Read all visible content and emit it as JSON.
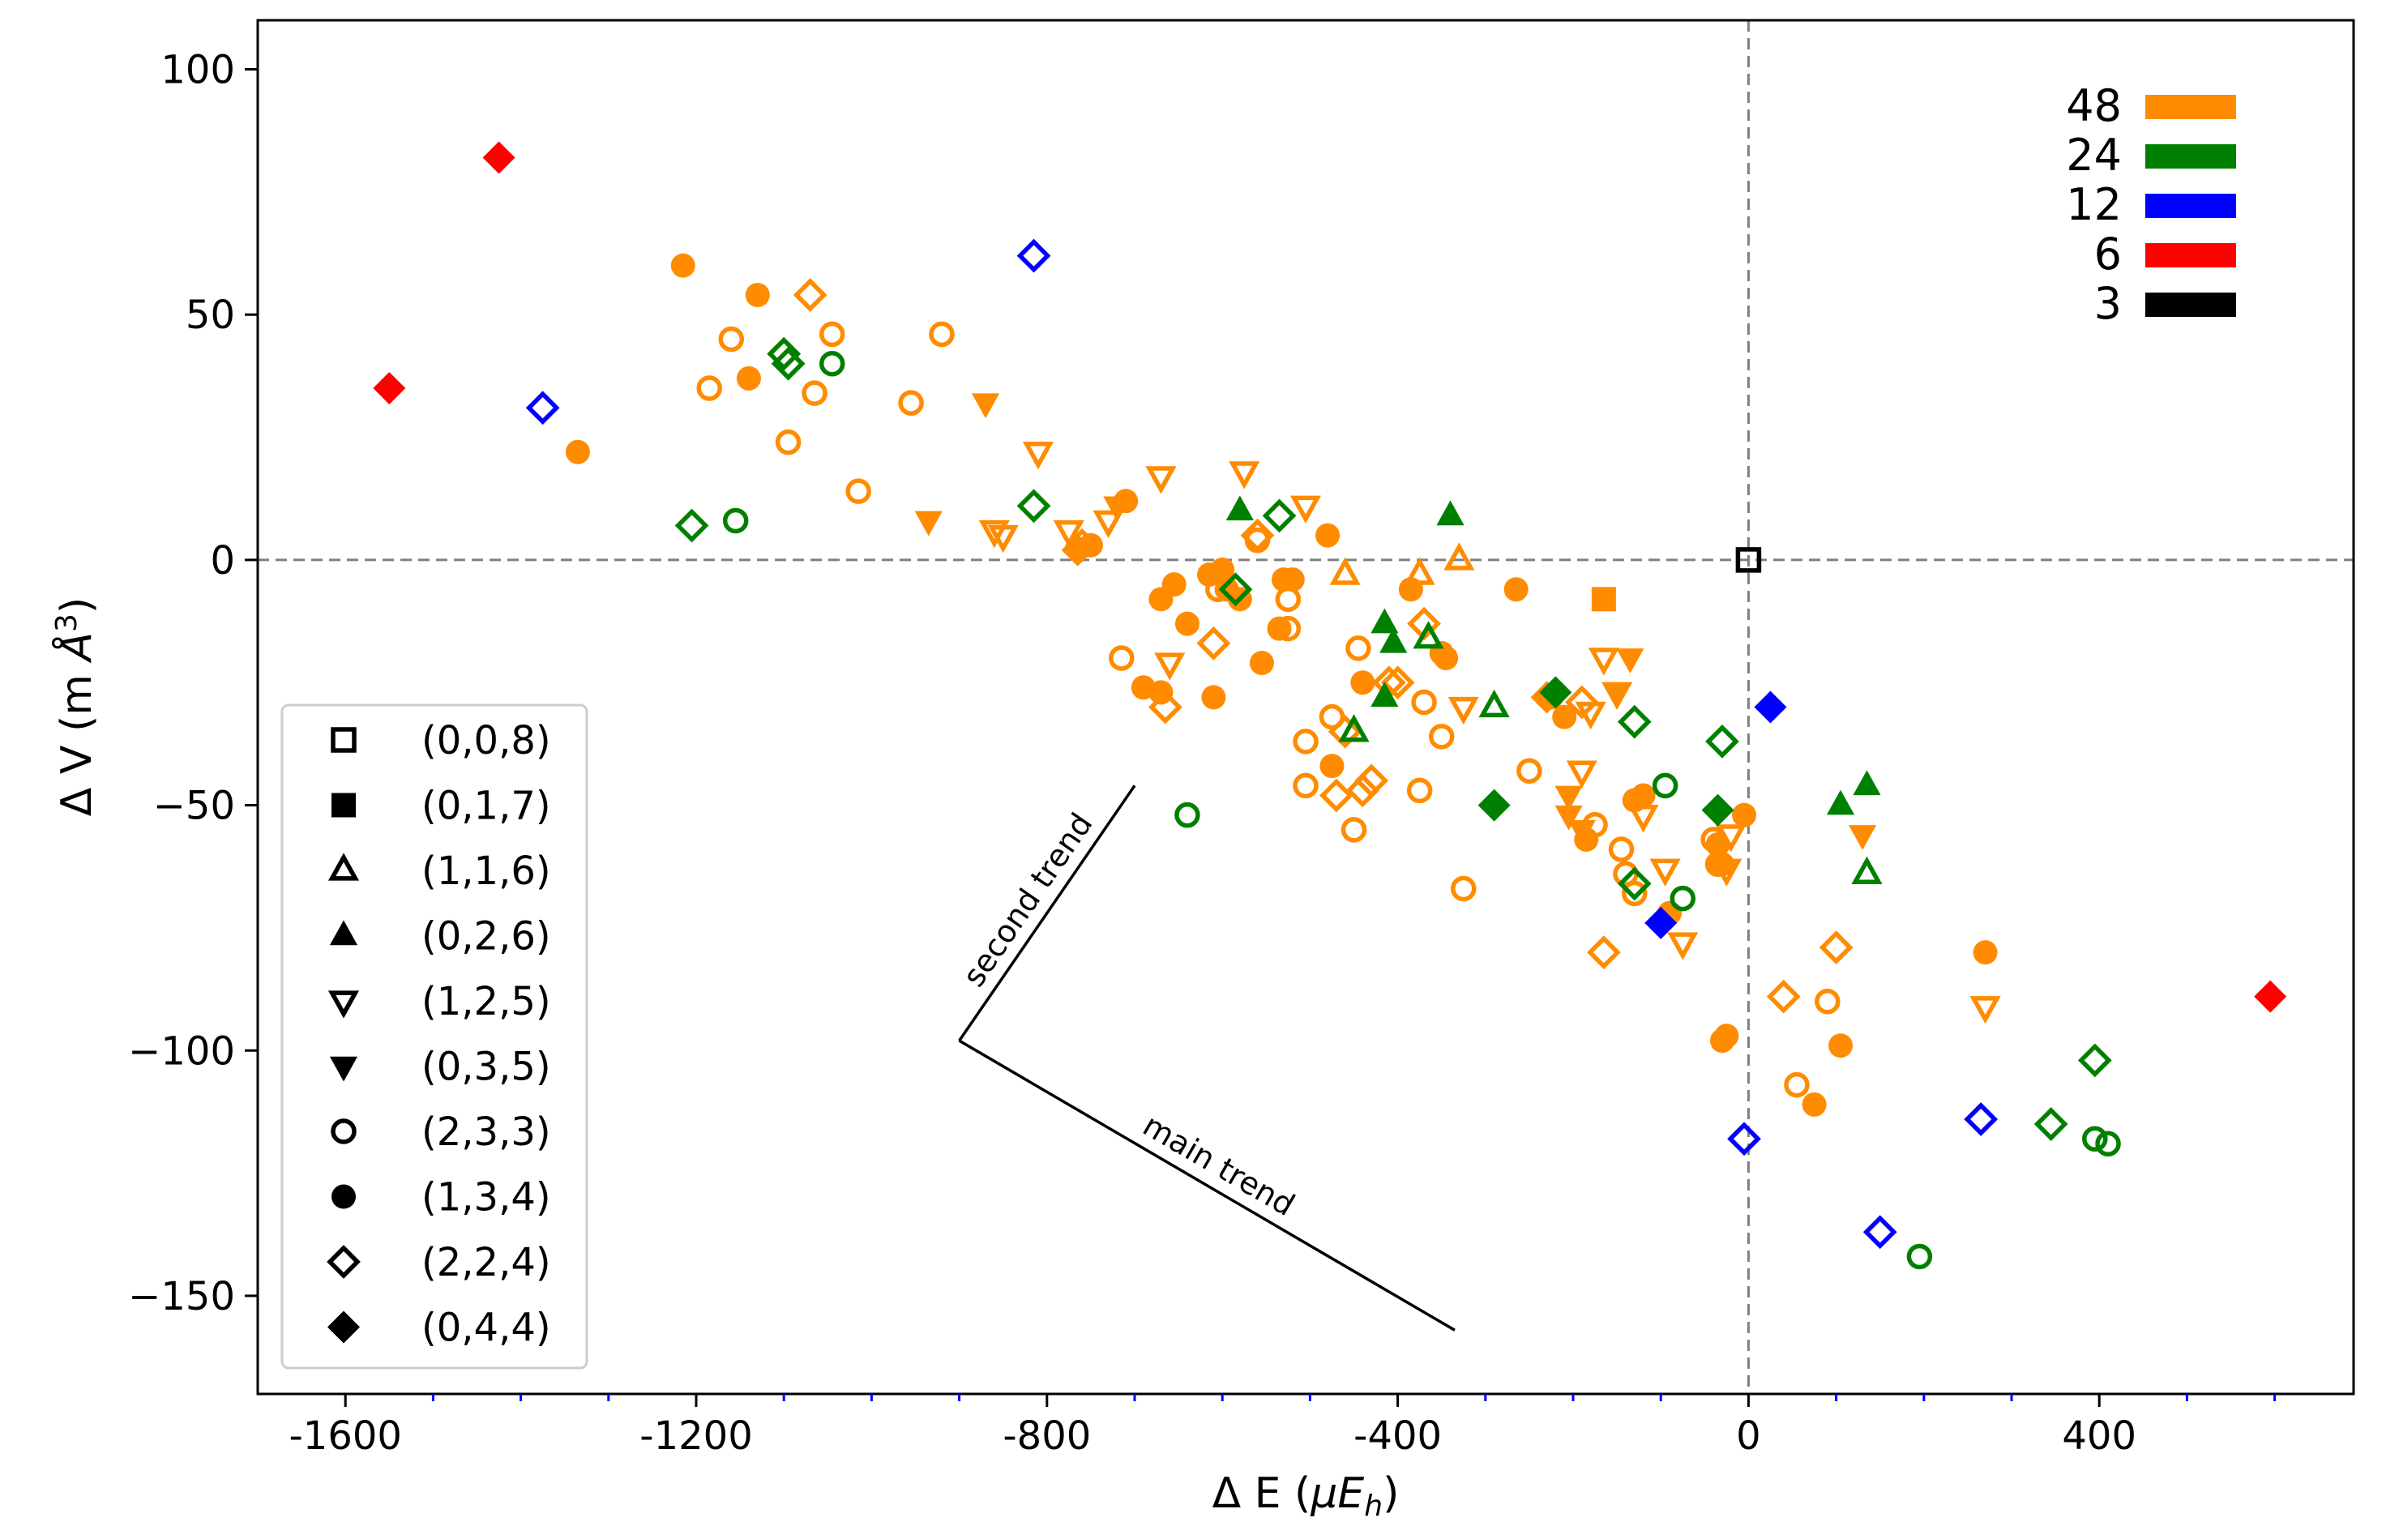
{
  "chart_data": {
    "type": "scatter",
    "title": "",
    "xlabel": "Δ E (μE_h)",
    "ylabel": "Δ V (m Å³)",
    "xlim": [
      -1700,
      690
    ],
    "ylim": [
      -170,
      110
    ],
    "xticks": [
      -1600,
      -1200,
      -800,
      -400,
      0,
      400
    ],
    "xtick_labels": [
      "-1600",
      "-1200",
      "-800",
      "-400",
      "0",
      "400"
    ],
    "yticks": [
      100,
      50,
      0,
      -50,
      -100,
      -150
    ],
    "ytick_labels": [
      "100",
      "50",
      "0",
      "−50",
      "−100",
      "−150"
    ],
    "x_minor_ticks": [
      -1500,
      -1400,
      -1300,
      -1100,
      -1000,
      -900,
      -700,
      -600,
      -500,
      -300,
      -200,
      -100,
      100,
      200,
      300,
      500,
      600
    ],
    "reference_lines": {
      "x": 0,
      "y": 0,
      "style": "dashed"
    },
    "grid": false,
    "color_legend": {
      "placement": "top-right",
      "entries": [
        {
          "label": "48",
          "color": "#ff8c00"
        },
        {
          "label": "24",
          "color": "#008000"
        },
        {
          "label": "12",
          "color": "#0000ff"
        },
        {
          "label": "6",
          "color": "#ff0000"
        },
        {
          "label": "3",
          "color": "#000000"
        }
      ]
    },
    "marker_legend": {
      "placement": "bottom-left",
      "entries": [
        {
          "label": "(0,0,8)",
          "marker": "square",
          "filled": false
        },
        {
          "label": "(0,1,7)",
          "marker": "square",
          "filled": true
        },
        {
          "label": "(1,1,6)",
          "marker": "triangle-up",
          "filled": false
        },
        {
          "label": "(0,2,6)",
          "marker": "triangle-up",
          "filled": true
        },
        {
          "label": "(1,2,5)",
          "marker": "triangle-down",
          "filled": false
        },
        {
          "label": "(0,3,5)",
          "marker": "triangle-down",
          "filled": true
        },
        {
          "label": "(2,3,3)",
          "marker": "circle",
          "filled": false
        },
        {
          "label": "(1,3,4)",
          "marker": "circle",
          "filled": true
        },
        {
          "label": "(2,2,4)",
          "marker": "diamond",
          "filled": false
        },
        {
          "label": "(0,4,4)",
          "marker": "diamond",
          "filled": true
        }
      ]
    },
    "annotations": [
      {
        "text": "second trend",
        "from": [
          -900,
          -98
        ],
        "to": [
          -700,
          -46
        ]
      },
      {
        "text": "main trend",
        "from": [
          -900,
          -98
        ],
        "to": [
          -335,
          -157
        ]
      }
    ],
    "series": [
      {
        "group": "48",
        "color": "#ff8c00",
        "marker": "circle",
        "filled": true,
        "points": [
          [
            -1215,
            60
          ],
          [
            -1130,
            54
          ],
          [
            -1140,
            37
          ],
          [
            -1335,
            22
          ],
          [
            -750,
            3
          ],
          [
            -710,
            12
          ],
          [
            -670,
            -8
          ],
          [
            -655,
            -5
          ],
          [
            -640,
            -13
          ],
          [
            -615,
            -3
          ],
          [
            -600,
            -2
          ],
          [
            -595,
            -6
          ],
          [
            -580,
            -8
          ],
          [
            -535,
            -14
          ],
          [
            -530,
            -4
          ],
          [
            -520,
            -4
          ],
          [
            -555,
            -21
          ],
          [
            -480,
            5
          ],
          [
            -475,
            -42
          ],
          [
            -440,
            -25
          ],
          [
            -385,
            -6
          ],
          [
            -350,
            -19
          ],
          [
            -345,
            -20
          ],
          [
            -265,
            -6
          ],
          [
            -225,
            -28
          ],
          [
            -210,
            -32
          ],
          [
            -185,
            -57
          ],
          [
            -130,
            -49
          ],
          [
            -120,
            -48
          ],
          [
            -90,
            -72
          ],
          [
            -35,
            -58
          ],
          [
            -35,
            -62
          ],
          [
            -30,
            -62
          ],
          [
            -30,
            -98
          ],
          [
            -25,
            -97
          ],
          [
            -5,
            -52
          ],
          [
            75,
            -111
          ],
          [
            105,
            -99
          ],
          [
            270,
            -80
          ],
          [
            -690,
            -26
          ],
          [
            -670,
            -27
          ],
          [
            -610,
            -28
          ]
        ]
      },
      {
        "group": "48",
        "color": "#ff8c00",
        "marker": "circle",
        "filled": false,
        "points": [
          [
            -1160,
            45
          ],
          [
            -1185,
            35
          ],
          [
            -1095,
            24
          ],
          [
            -1065,
            34
          ],
          [
            -1045,
            46
          ],
          [
            -955,
            32
          ],
          [
            -920,
            46
          ],
          [
            -1015,
            14
          ],
          [
            -715,
            -20
          ],
          [
            -605,
            -6
          ],
          [
            -560,
            4
          ],
          [
            -525,
            -8
          ],
          [
            -525,
            -14
          ],
          [
            -505,
            -37
          ],
          [
            -505,
            -46
          ],
          [
            -475,
            -32
          ],
          [
            -450,
            -55
          ],
          [
            -445,
            -18
          ],
          [
            -370,
            -29
          ],
          [
            -375,
            -47
          ],
          [
            -350,
            -36
          ],
          [
            -325,
            -67
          ],
          [
            -250,
            -43
          ],
          [
            -175,
            -54
          ],
          [
            -145,
            -59
          ],
          [
            -140,
            -64
          ],
          [
            -130,
            -68
          ],
          [
            -40,
            -57
          ],
          [
            -35,
            -62
          ],
          [
            90,
            -90
          ],
          [
            55,
            -107
          ]
        ]
      },
      {
        "group": "48",
        "color": "#ff8c00",
        "marker": "diamond",
        "filled": false,
        "points": [
          [
            -1070,
            54
          ],
          [
            -1100,
            42
          ],
          [
            -760,
            3
          ],
          [
            -560,
            5
          ],
          [
            -610,
            -17
          ],
          [
            -665,
            -30
          ],
          [
            -470,
            -48
          ],
          [
            -440,
            -47
          ],
          [
            -430,
            -45
          ],
          [
            -410,
            -25
          ],
          [
            -400,
            -25
          ],
          [
            -370,
            -13
          ],
          [
            -190,
            -29
          ],
          [
            -165,
            -80
          ],
          [
            40,
            -89
          ],
          [
            100,
            -79
          ],
          [
            -460,
            -35
          ]
        ]
      },
      {
        "group": "48",
        "color": "#ff8c00",
        "marker": "diamond",
        "filled": true,
        "points": [
          [
            -765,
            2
          ],
          [
            -230,
            -28
          ]
        ]
      },
      {
        "group": "48",
        "color": "#ff8c00",
        "marker": "triangle-down",
        "filled": true,
        "points": [
          [
            -870,
            32
          ],
          [
            -935,
            8
          ],
          [
            -720,
            11
          ],
          [
            -205,
            -48
          ],
          [
            -205,
            -52
          ],
          [
            -190,
            -55
          ],
          [
            -150,
            -27
          ],
          [
            -135,
            -20
          ],
          [
            130,
            -56
          ]
        ]
      },
      {
        "group": "48",
        "color": "#ff8c00",
        "marker": "triangle-down",
        "filled": false,
        "points": [
          [
            -810,
            22
          ],
          [
            -775,
            6
          ],
          [
            -730,
            8
          ],
          [
            -860,
            6
          ],
          [
            -850,
            5
          ],
          [
            -670,
            17
          ],
          [
            -660,
            -21
          ],
          [
            -575,
            18
          ],
          [
            -505,
            11
          ],
          [
            -325,
            -30
          ],
          [
            -190,
            -43
          ],
          [
            -180,
            -31
          ],
          [
            -165,
            -20
          ],
          [
            -150,
            -27
          ],
          [
            -120,
            -52
          ],
          [
            -95,
            -63
          ],
          [
            -75,
            -78
          ],
          [
            -25,
            -63
          ],
          [
            -20,
            -56
          ],
          [
            270,
            -91
          ]
        ]
      },
      {
        "group": "48",
        "color": "#ff8c00",
        "marker": "triangle-up",
        "filled": false,
        "points": [
          [
            -460,
            -3
          ],
          [
            -375,
            -3
          ],
          [
            -330,
            0
          ]
        ]
      },
      {
        "group": "48",
        "color": "#ff8c00",
        "marker": "square",
        "filled": true,
        "points": [
          [
            -165,
            -8
          ]
        ]
      },
      {
        "group": "24",
        "color": "#008000",
        "marker": "diamond",
        "filled": false,
        "points": [
          [
            -1205,
            7
          ],
          [
            -1100,
            42
          ],
          [
            -1095,
            40
          ],
          [
            -815,
            11
          ],
          [
            -585,
            -6
          ],
          [
            -535,
            9
          ],
          [
            -130,
            -33
          ],
          [
            -130,
            -66
          ],
          [
            -30,
            -37
          ],
          [
            345,
            -115
          ],
          [
            395,
            -102
          ]
        ]
      },
      {
        "group": "24",
        "color": "#008000",
        "marker": "circle",
        "filled": false,
        "points": [
          [
            -1155,
            8
          ],
          [
            -1045,
            40
          ],
          [
            -640,
            -52
          ],
          [
            -95,
            -46
          ],
          [
            -75,
            -69
          ],
          [
            395,
            -118
          ],
          [
            410,
            -119
          ],
          [
            195,
            -142
          ]
        ]
      },
      {
        "group": "24",
        "color": "#008000",
        "marker": "triangle-up",
        "filled": true,
        "points": [
          [
            -580,
            10
          ],
          [
            -340,
            9
          ],
          [
            -415,
            -13
          ],
          [
            -405,
            -17
          ],
          [
            -415,
            -28
          ],
          [
            105,
            -50
          ],
          [
            135,
            -46
          ]
        ]
      },
      {
        "group": "24",
        "color": "#008000",
        "marker": "triangle-up",
        "filled": false,
        "points": [
          [
            -365,
            -16
          ],
          [
            -290,
            -30
          ],
          [
            -450,
            -35
          ],
          [
            135,
            -64
          ]
        ]
      },
      {
        "group": "24",
        "color": "#008000",
        "marker": "diamond",
        "filled": true,
        "points": [
          [
            -290,
            -50
          ],
          [
            -220,
            -27
          ],
          [
            -35,
            -51
          ]
        ]
      },
      {
        "group": "12",
        "color": "#0000ff",
        "marker": "diamond",
        "filled": false,
        "points": [
          [
            -815,
            62
          ],
          [
            -1375,
            31
          ],
          [
            -5,
            -118
          ],
          [
            150,
            -137
          ],
          [
            265,
            -114
          ]
        ]
      },
      {
        "group": "12",
        "color": "#0000ff",
        "marker": "diamond",
        "filled": true,
        "points": [
          [
            25,
            -30
          ],
          [
            -100,
            -74
          ]
        ]
      },
      {
        "group": "6",
        "color": "#ff0000",
        "marker": "diamond",
        "filled": true,
        "points": [
          [
            -1425,
            82
          ],
          [
            -1550,
            35
          ],
          [
            595,
            -89
          ]
        ]
      },
      {
        "group": "3",
        "color": "#000000",
        "marker": "square",
        "filled": false,
        "points": [
          [
            0,
            0
          ]
        ]
      }
    ]
  }
}
